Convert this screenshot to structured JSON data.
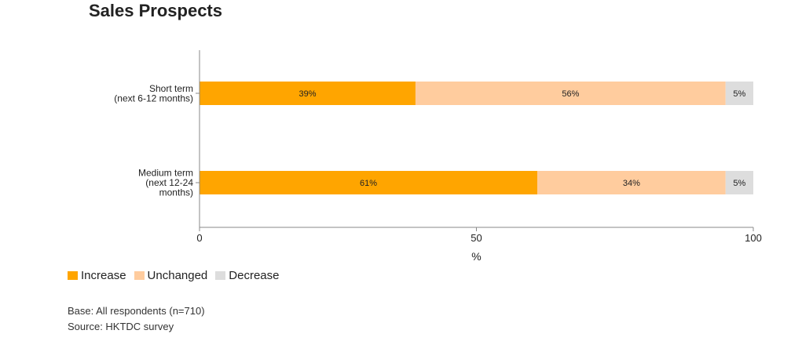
{
  "chart_data": {
    "type": "bar",
    "orientation": "horizontal",
    "stacked": true,
    "title": "Sales Prospects",
    "categories": [
      "Short term\n(next 6-12 months)",
      "Medium term\n(next 12-24\nmonths)"
    ],
    "series": [
      {
        "name": "Increase",
        "values": [
          39,
          61
        ],
        "labels": [
          "39%",
          "61%"
        ]
      },
      {
        "name": "Unchanged",
        "values": [
          56,
          34
        ],
        "labels": [
          "56%",
          "34%"
        ]
      },
      {
        "name": "Decrease",
        "values": [
          5,
          5
        ],
        "labels": [
          "5%",
          "5%"
        ]
      }
    ],
    "xlabel": "%",
    "ylabel": "",
    "xlim": [
      0,
      100
    ],
    "xticks": [
      0,
      50,
      100
    ],
    "grid": false,
    "legend_position": "bottom-left"
  },
  "colors": {
    "Increase": "#FFA500",
    "Unchanged": "#FFCC9E",
    "Decrease": "#DDDDDD",
    "axis": "#888888"
  },
  "notes": {
    "base": "Base: All respondents (n=710)",
    "source": "Source: HKTDC survey"
  }
}
